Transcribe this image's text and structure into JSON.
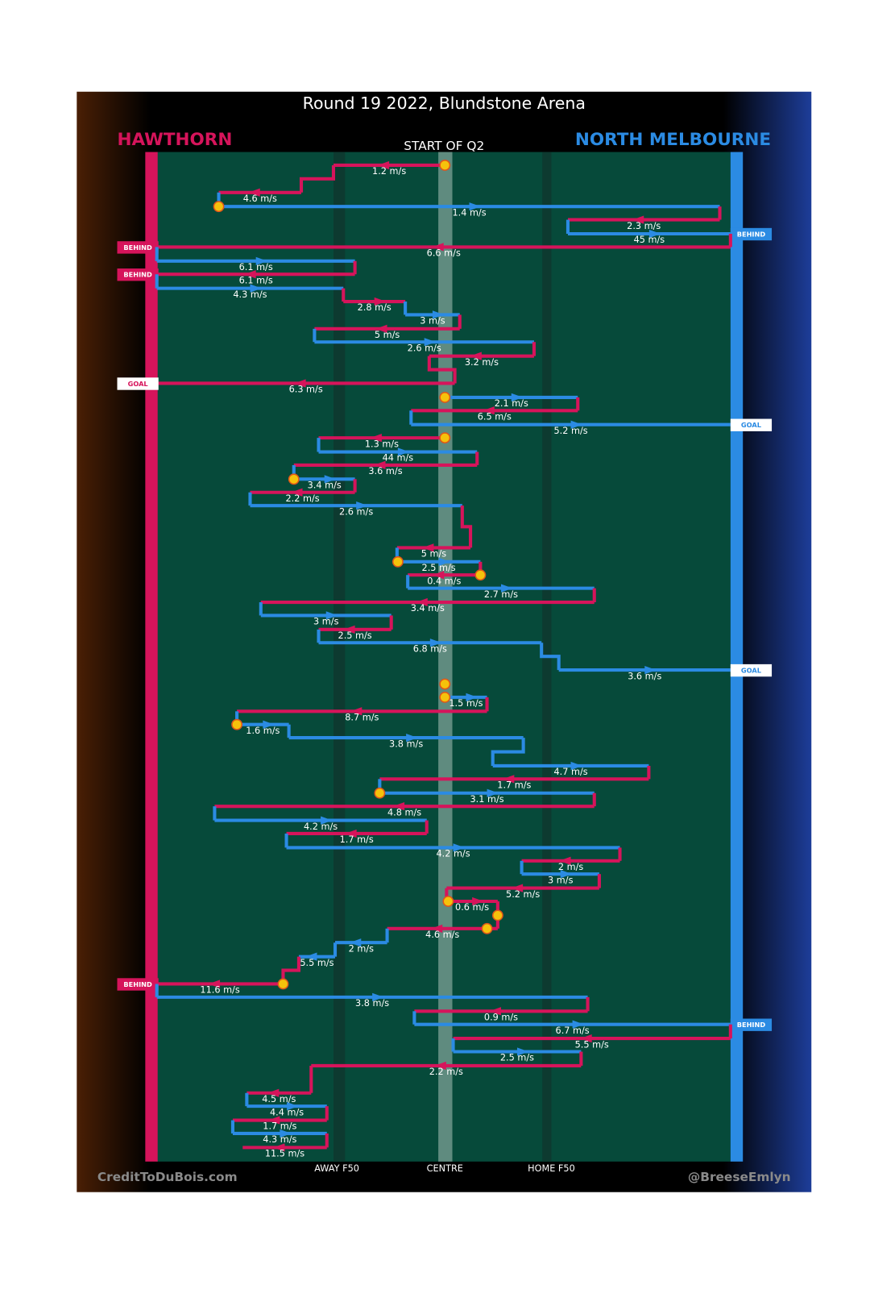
{
  "header": {
    "title": "Round 19 2022, Blundstone Arena",
    "subtitle": "START OF Q2"
  },
  "teams": [
    {
      "name": "HAWTHORN",
      "color": "#d6145b"
    },
    {
      "name": "NORTH MELBOURNE",
      "color": "#2b8be3"
    }
  ],
  "zones": [
    "AWAY F50",
    "CENTRE",
    "HOME F50"
  ],
  "footer": {
    "left": "CreditToDuBois.com",
    "right": "@BreeseEmlyn"
  },
  "movements": [
    {
      "team": 0,
      "speed": "1.2 m/s"
    },
    {
      "team": 0,
      "speed": "4.6 m/s"
    },
    {
      "team": 1,
      "speed": "1.4 m/s"
    },
    {
      "team": 0,
      "speed": "2.3 m/s"
    },
    {
      "team": 1,
      "speed": "45 m/s",
      "result": "BEHIND"
    },
    {
      "team": 0,
      "speed": "6.6 m/s",
      "result": "BEHIND"
    },
    {
      "team": 1,
      "speed": "6.1 m/s"
    },
    {
      "team": 0,
      "speed": "6.1 m/s",
      "result": "BEHIND"
    },
    {
      "team": 1,
      "speed": "4.3 m/s"
    },
    {
      "team": 0,
      "speed": "2.8 m/s"
    },
    {
      "team": 1,
      "speed": "3 m/s"
    },
    {
      "team": 0,
      "speed": "5 m/s"
    },
    {
      "team": 1,
      "speed": "2.6 m/s"
    },
    {
      "team": 0,
      "speed": "3.2 m/s"
    },
    {
      "team": 0,
      "speed": "6.3 m/s",
      "result": "GOAL"
    },
    {
      "team": 1,
      "speed": "2.1 m/s"
    },
    {
      "team": 0,
      "speed": "6.5 m/s"
    },
    {
      "team": 1,
      "speed": "5.2 m/s",
      "result": "GOAL"
    },
    {
      "team": 0,
      "speed": "1.3 m/s"
    },
    {
      "team": 1,
      "speed": "44 m/s"
    },
    {
      "team": 0,
      "speed": "3.6 m/s"
    },
    {
      "team": 1,
      "speed": "3.4 m/s"
    },
    {
      "team": 0,
      "speed": "2.2 m/s"
    },
    {
      "team": 1,
      "speed": "2.6 m/s"
    },
    {
      "team": 0,
      "speed": "5 m/s"
    },
    {
      "team": 1,
      "speed": "2.5 m/s"
    },
    {
      "team": 0,
      "speed": "0.4 m/s"
    },
    {
      "team": 1,
      "speed": "2.7 m/s"
    },
    {
      "team": 0,
      "speed": "3.4 m/s"
    },
    {
      "team": 1,
      "speed": "3 m/s"
    },
    {
      "team": 0,
      "speed": "2.5 m/s"
    },
    {
      "team": 1,
      "speed": "6.8 m/s"
    },
    {
      "team": 1,
      "speed": "3.6 m/s",
      "result": "GOAL"
    },
    {
      "team": 1,
      "speed": "1.5 m/s"
    },
    {
      "team": 0,
      "speed": "8.7 m/s"
    },
    {
      "team": 1,
      "speed": "1.6 m/s"
    },
    {
      "team": 1,
      "speed": "3.8 m/s"
    },
    {
      "team": 1,
      "speed": "4.7 m/s"
    },
    {
      "team": 0,
      "speed": "1.7 m/s"
    },
    {
      "team": 1,
      "speed": "3.1 m/s"
    },
    {
      "team": 0,
      "speed": "4.8 m/s"
    },
    {
      "team": 1,
      "speed": "4.2 m/s"
    },
    {
      "team": 0,
      "speed": "1.7 m/s"
    },
    {
      "team": 1,
      "speed": "4.2 m/s"
    },
    {
      "team": 0,
      "speed": "2 m/s"
    },
    {
      "team": 1,
      "speed": "3 m/s"
    },
    {
      "team": 0,
      "speed": "5.2 m/s"
    },
    {
      "team": 0,
      "speed": "0.6 m/s"
    },
    {
      "team": 0,
      "speed": "4.6 m/s"
    },
    {
      "team": 1,
      "speed": "2 m/s"
    },
    {
      "team": 1,
      "speed": "5.5 m/s"
    },
    {
      "team": 0,
      "speed": "11.6 m/s",
      "result": "BEHIND"
    },
    {
      "team": 1,
      "speed": "3.8 m/s"
    },
    {
      "team": 0,
      "speed": "0.9 m/s"
    },
    {
      "team": 1,
      "speed": "6.7 m/s",
      "result": "BEHIND"
    },
    {
      "team": 0,
      "speed": "5.5 m/s"
    },
    {
      "team": 1,
      "speed": "2.5 m/s"
    },
    {
      "team": 0,
      "speed": "2.2 m/s"
    },
    {
      "team": 0,
      "speed": "4.5 m/s"
    },
    {
      "team": 1,
      "speed": "4.4 m/s"
    },
    {
      "team": 0,
      "speed": "1.7 m/s"
    },
    {
      "team": 1,
      "speed": "4.3 m/s"
    },
    {
      "team": 0,
      "speed": "11.5 m/s"
    }
  ]
}
